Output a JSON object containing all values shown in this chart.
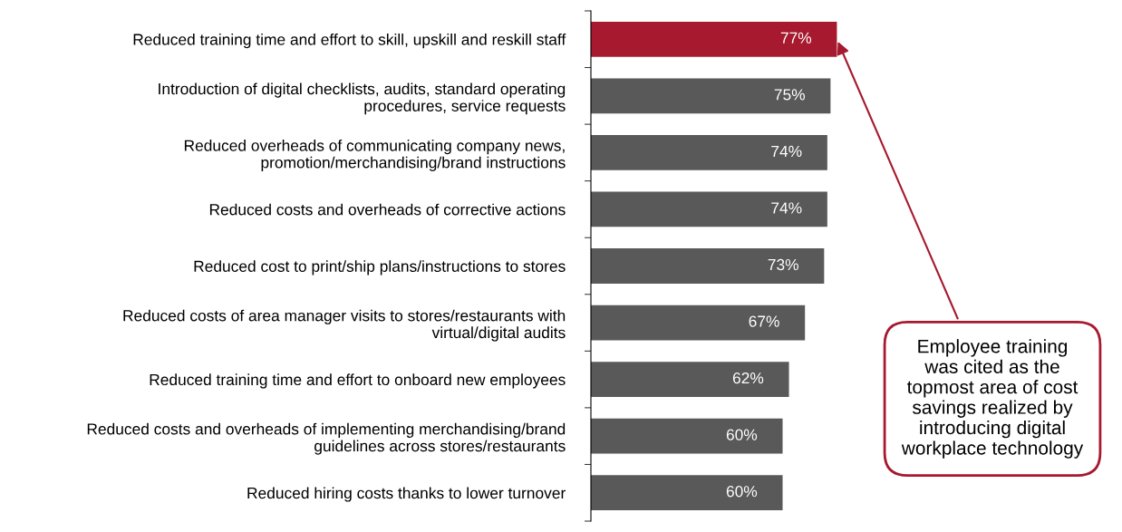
{
  "chart_data": {
    "type": "bar",
    "orientation": "horizontal",
    "categories": [
      "Reduced training time and effort to skill, upskill and reskill staff",
      "Introduction of digital checklists, audits, standard operating procedures, service requests",
      "Reduced overheads of communicating company news, promotion/merchandising/brand instructions",
      "Reduced costs and overheads of corrective actions",
      "Reduced cost to print/ship plans/instructions to stores",
      "Reduced costs of area manager visits to stores/restaurants with virtual/digital audits",
      "Reduced training time and effort to onboard new employees",
      "Reduced costs and overheads of implementing merchandising/brand guidelines across stores/restaurants",
      "Reduced hiring costs thanks to lower turnover"
    ],
    "values": [
      77,
      75,
      74,
      74,
      73,
      67,
      62,
      60,
      60
    ],
    "value_labels": [
      "77%",
      "75%",
      "74%",
      "74%",
      "73%",
      "67%",
      "62%",
      "60%",
      "60%"
    ],
    "colors": [
      "#a6192e",
      "#595959",
      "#595959",
      "#595959",
      "#595959",
      "#595959",
      "#595959",
      "#595959",
      "#595959"
    ],
    "tick_labels": "y",
    "grid": false,
    "legend": false,
    "annotations": [
      {
        "text": "Employee training was cited as the topmost area of cost savings realized by introducing digital workplace technology",
        "x": 77,
        "y": "Reduced training time and effort to skill, upskill and reskill staff"
      }
    ]
  }
}
